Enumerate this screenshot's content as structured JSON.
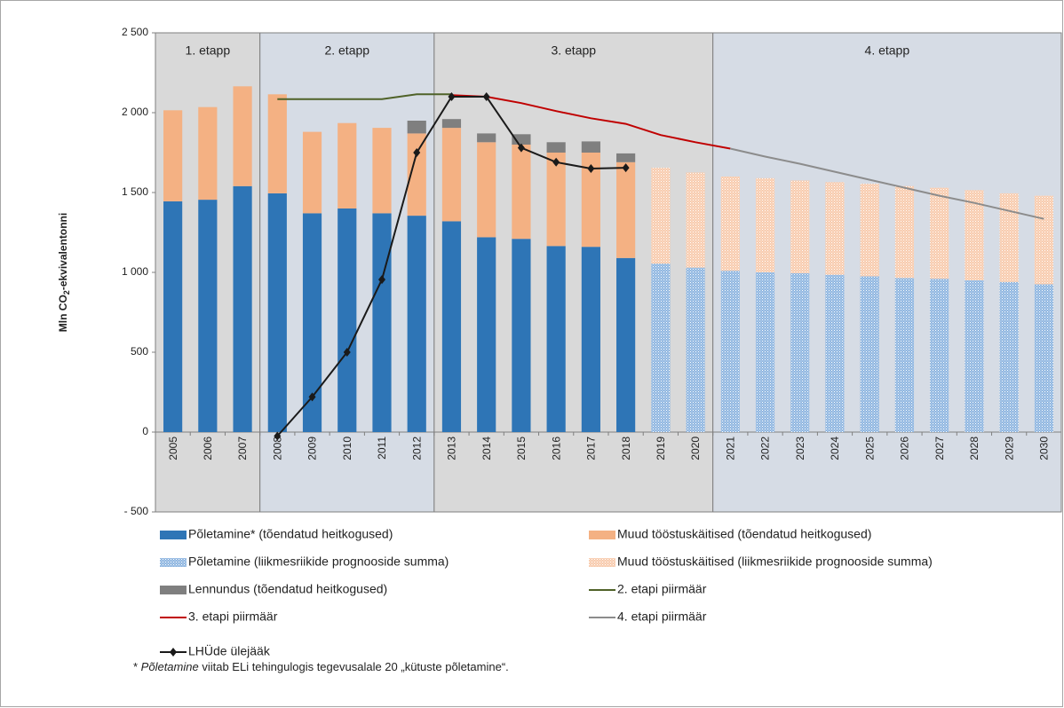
{
  "chart_data": {
    "type": "bar",
    "y_label_parts": [
      "Mln CO",
      "2",
      "-ekvivalentonni"
    ],
    "categories": [
      "2005",
      "2006",
      "2007",
      "2008",
      "2009",
      "2010",
      "2011",
      "2012",
      "2013",
      "2014",
      "2015",
      "2016",
      "2017",
      "2018",
      "2019",
      "2020",
      "2021",
      "2022",
      "2023",
      "2024",
      "2025",
      "2026",
      "2027",
      "2028",
      "2029",
      "2030"
    ],
    "ylim": [
      -500,
      2500
    ],
    "yticks": [
      {
        "value": -500,
        "label": "- 500"
      },
      0,
      500,
      {
        "value": 1000,
        "label": "1 000"
      },
      {
        "value": 1500,
        "label": "1 500"
      },
      {
        "value": 2000,
        "label": "2 000"
      },
      {
        "value": 2500,
        "label": "2 500"
      }
    ],
    "phases": [
      {
        "label": "1. etapp",
        "start": "2005",
        "end": "2007",
        "color": "#d9d9d9"
      },
      {
        "label": "2. etapp",
        "start": "2008",
        "end": "2012",
        "color": "#d6dce5"
      },
      {
        "label": "3. etapp",
        "start": "2013",
        "end": "2020",
        "color": "#d9d9d9"
      },
      {
        "label": "4. etapp",
        "start": "2021",
        "end": "2030",
        "color": "#d6dce5"
      }
    ],
    "series": [
      {
        "name": "Põletamine* (tõendatud heitkogused)",
        "kind": "bar",
        "color": "#2e75b6",
        "values": [
          1445,
          1455,
          1540,
          1495,
          1370,
          1400,
          1370,
          1355,
          1320,
          1220,
          1210,
          1165,
          1160,
          1090,
          null,
          null,
          null,
          null,
          null,
          null,
          null,
          null,
          null,
          null,
          null,
          null
        ]
      },
      {
        "name": "Muud tööstuskäitised (tõendatud heitkogused)",
        "kind": "bar",
        "color": "#f4b183",
        "values": [
          570,
          580,
          625,
          620,
          510,
          535,
          535,
          515,
          585,
          595,
          590,
          585,
          590,
          600,
          null,
          null,
          null,
          null,
          null,
          null,
          null,
          null,
          null,
          null,
          null,
          null
        ]
      },
      {
        "name": "Põletamine (liikmesriikide prognooside summa)",
        "kind": "bar",
        "color": "#8fb6e0",
        "dotted": true,
        "values": [
          null,
          null,
          null,
          null,
          null,
          null,
          null,
          null,
          null,
          null,
          null,
          null,
          null,
          null,
          1055,
          1030,
          1010,
          1000,
          995,
          985,
          975,
          965,
          960,
          950,
          940,
          925
        ]
      },
      {
        "name": "Muud tööstuskäitised (liikmesriikide prognooside summa)",
        "kind": "bar",
        "color": "#f8cbad",
        "dotted": true,
        "values": [
          null,
          null,
          null,
          null,
          null,
          null,
          null,
          null,
          null,
          null,
          null,
          null,
          null,
          null,
          600,
          595,
          590,
          590,
          580,
          580,
          580,
          575,
          570,
          565,
          555,
          555
        ]
      },
      {
        "name": "Lennundus (tõendatud heitkogused)",
        "kind": "bar",
        "color": "#7f7f7f",
        "values": [
          null,
          null,
          null,
          null,
          null,
          null,
          null,
          80,
          55,
          55,
          65,
          65,
          70,
          55,
          null,
          null,
          null,
          null,
          null,
          null,
          null,
          null,
          null,
          null,
          null,
          null
        ]
      },
      {
        "name": "2. etapi piirmäär",
        "kind": "line",
        "color": "#4f6228",
        "values": [
          null,
          null,
          null,
          2085,
          2085,
          2085,
          2085,
          2115,
          2115,
          null,
          null,
          null,
          null,
          null,
          null,
          null,
          null,
          null,
          null,
          null,
          null,
          null,
          null,
          null,
          null,
          null
        ]
      },
      {
        "name": "3. etapi piirmäär",
        "kind": "line",
        "color": "#c00000",
        "values": [
          null,
          null,
          null,
          null,
          null,
          null,
          null,
          null,
          2110,
          2100,
          2060,
          2010,
          1965,
          1930,
          1860,
          1815,
          1775,
          null,
          null,
          null,
          null,
          null,
          null,
          null,
          null,
          null
        ]
      },
      {
        "name": "4. etapi piirmäär",
        "kind": "line",
        "color": "#8c8c8c",
        "values": [
          null,
          null,
          null,
          null,
          null,
          null,
          null,
          null,
          null,
          null,
          null,
          null,
          null,
          null,
          null,
          null,
          1775,
          1725,
          1680,
          1630,
          1580,
          1530,
          1480,
          1435,
          1385,
          1335
        ]
      },
      {
        "name": "LHÜde ülejääk",
        "kind": "line",
        "marker": "diamond",
        "color": "#1a1a1a",
        "values": [
          null,
          null,
          null,
          -25,
          220,
          500,
          955,
          1750,
          2100,
          2100,
          1780,
          1690,
          1650,
          1655,
          null,
          null,
          null,
          null,
          null,
          null,
          null,
          null,
          null,
          null,
          null,
          null
        ]
      }
    ],
    "footnote_parts": [
      "* ",
      "Põletamine",
      " viitab ELi tehingulogis tegevusalale 20 „kütuste põletamine“."
    ]
  }
}
